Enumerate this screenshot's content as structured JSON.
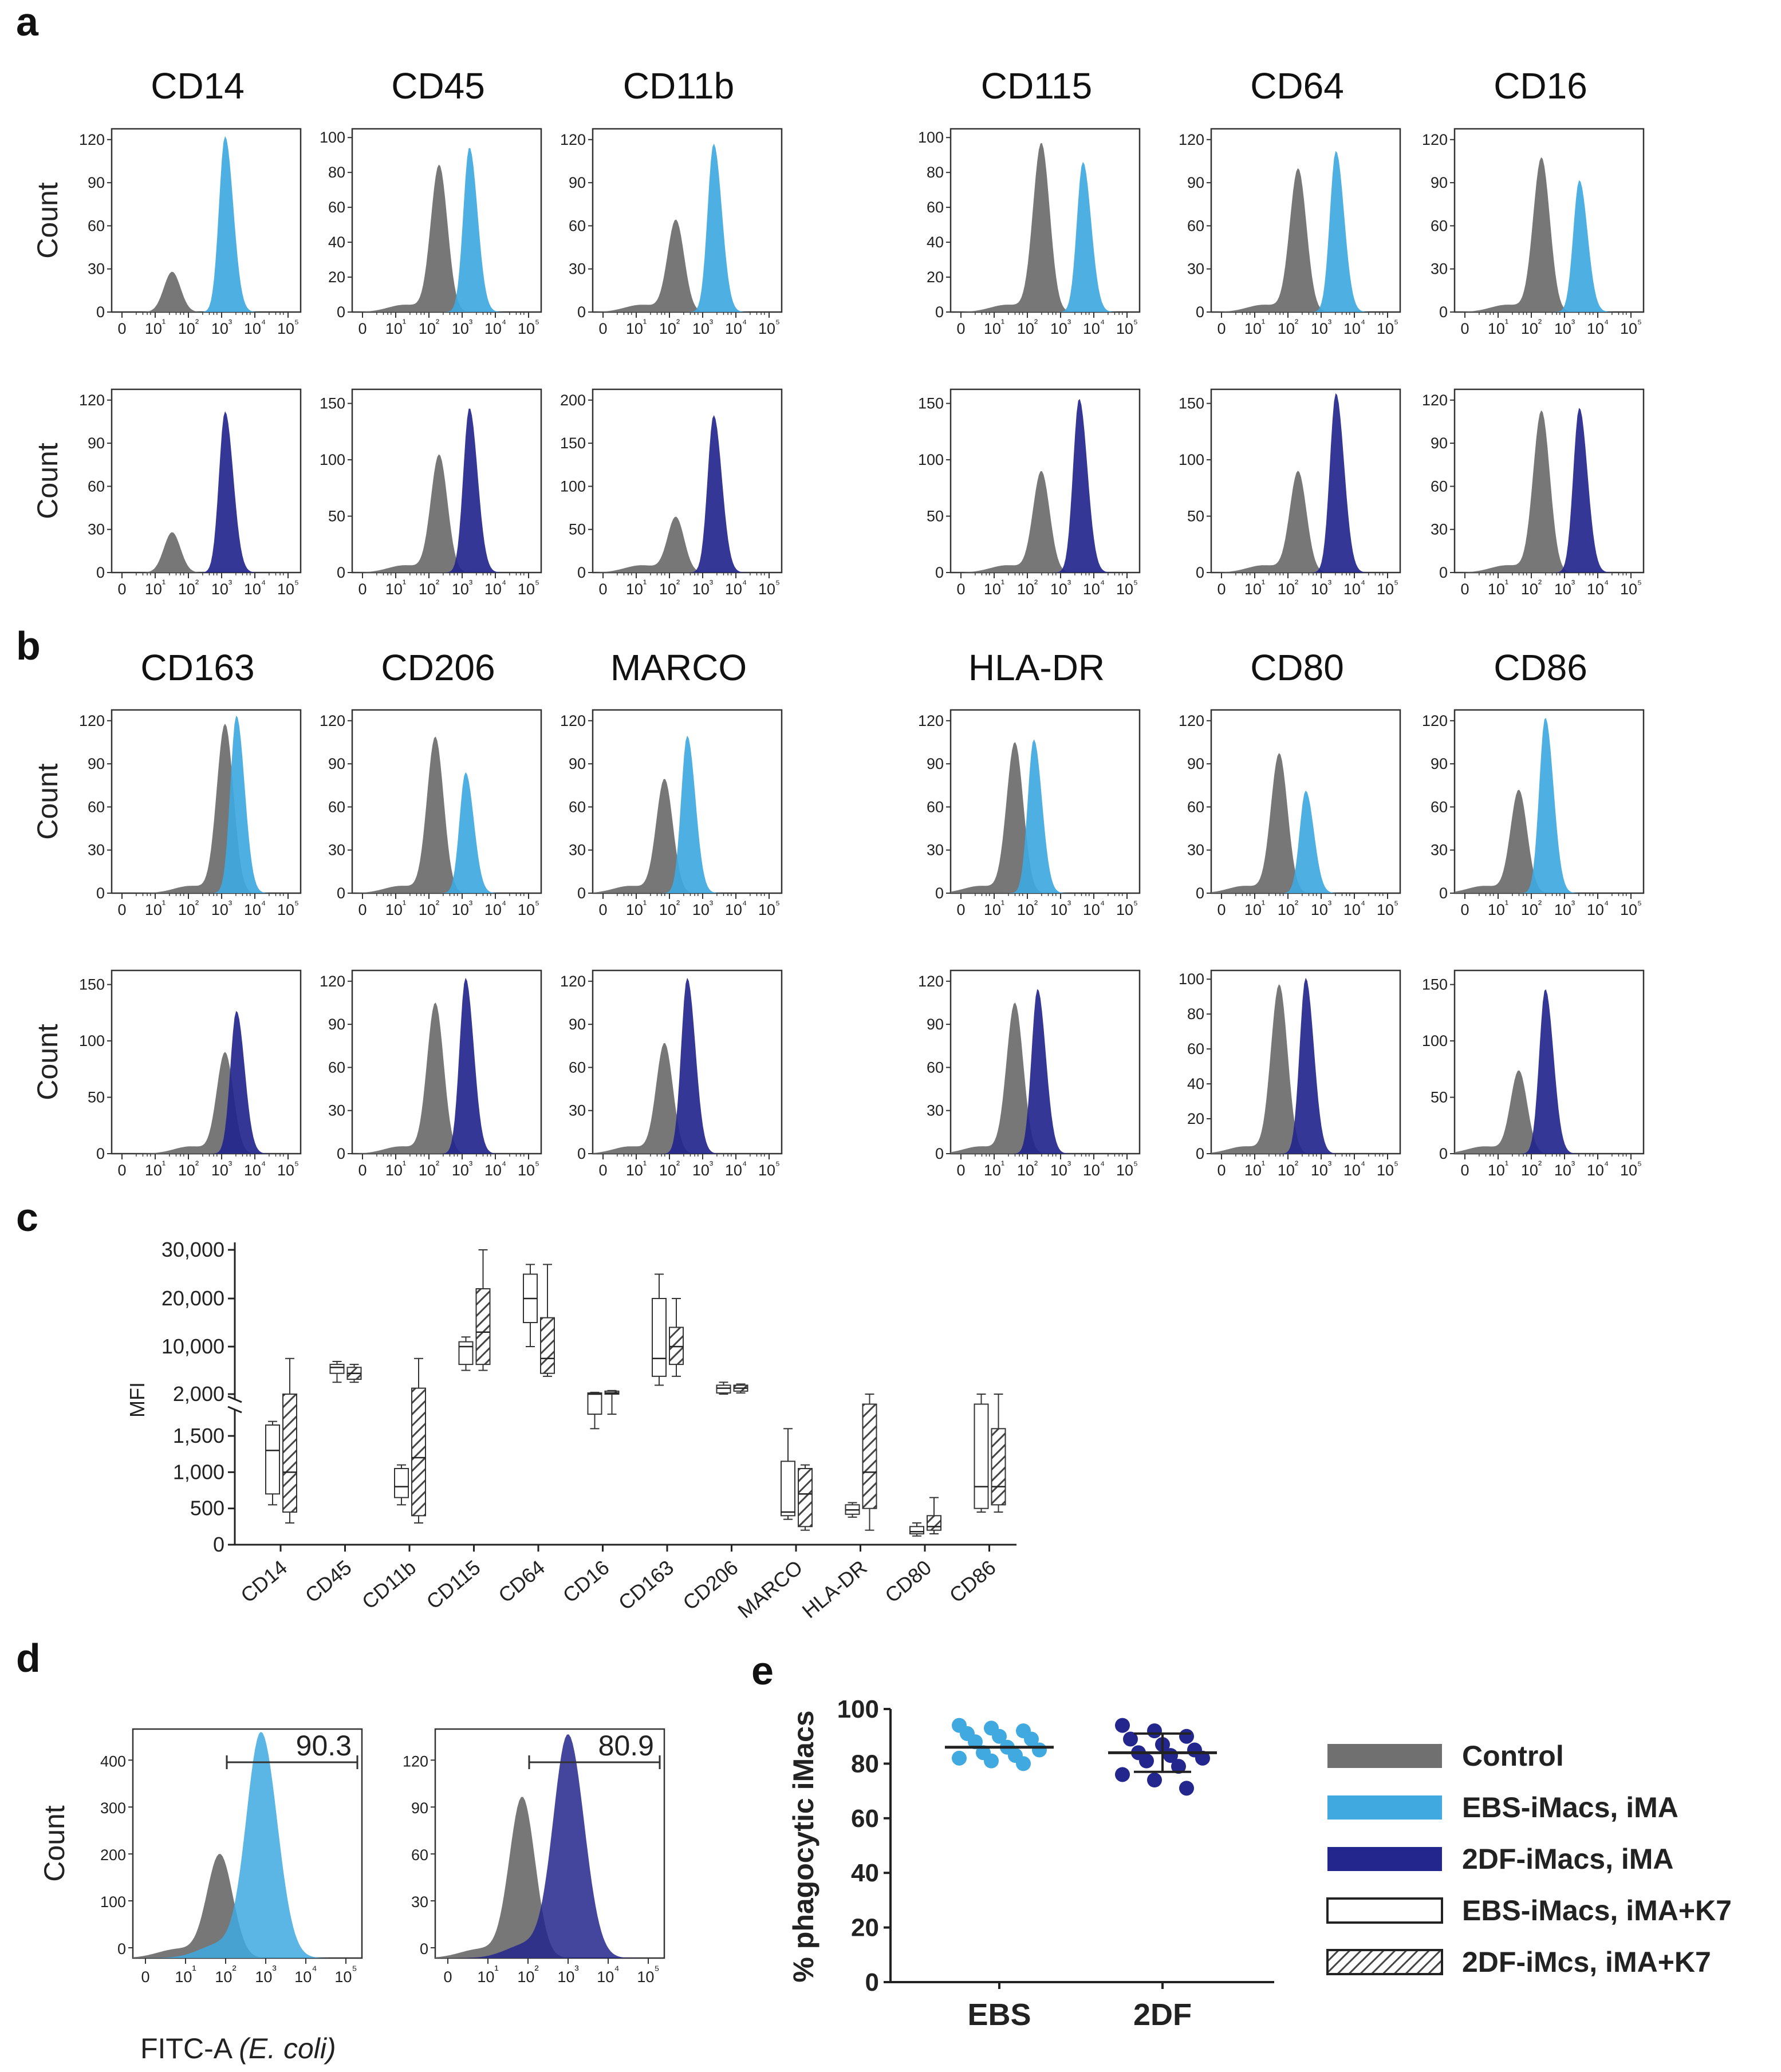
{
  "panel_labels": [
    "a",
    "b",
    "c",
    "d",
    "e"
  ],
  "colors": {
    "control": "#707070",
    "ebs": "#3fa9e0",
    "twodf": "#23268c",
    "box_outline": "#333333"
  },
  "hist_common": {
    "y_label": "Count",
    "x_ticks": [
      "0",
      "10¹",
      "10²",
      "10³",
      "10⁴",
      "10⁵"
    ]
  },
  "chart_data": [
    {
      "type": "histogram-grid",
      "panel": "a",
      "markers": [
        "CD14",
        "CD45",
        "CD11b",
        "CD115",
        "CD64",
        "CD16"
      ],
      "rows": [
        {
          "series": "EBS-iMacs, iMA",
          "ytick_sets": [
            [
              "0",
              "30",
              "60",
              "90",
              "120"
            ],
            [
              "0",
              "20",
              "40",
              "60",
              "80",
              "100"
            ],
            [
              "0",
              "30",
              "60",
              "90",
              "120"
            ],
            [
              "0",
              "20",
              "40",
              "60",
              "80",
              "100"
            ],
            [
              "0",
              "30",
              "60",
              "90",
              "120"
            ],
            [
              "0",
              "30",
              "60",
              "90",
              "120"
            ]
          ],
          "control_peaks": [
            [
              1.6,
              0.22
            ],
            [
              2.3,
              0.8
            ],
            [
              2.2,
              0.5
            ],
            [
              2.4,
              0.92
            ],
            [
              2.3,
              0.78
            ],
            [
              2.3,
              0.84
            ]
          ],
          "sample_peaks": [
            [
              3.0,
              0.96
            ],
            [
              3.1,
              0.9
            ],
            [
              3.2,
              0.92
            ],
            [
              3.5,
              0.82
            ],
            [
              3.3,
              0.88
            ],
            [
              3.3,
              0.72
            ]
          ]
        },
        {
          "series": "2DF-iMacs, iMA",
          "ytick_sets": [
            [
              "0",
              "30",
              "60",
              "90",
              "120"
            ],
            [
              "0",
              "50",
              "100",
              "150"
            ],
            [
              "0",
              "50",
              "100",
              "150",
              "200"
            ],
            [
              "0",
              "50",
              "100",
              "150"
            ],
            [
              "0",
              "50",
              "100",
              "150"
            ],
            [
              "0",
              "30",
              "60",
              "90",
              "120"
            ]
          ],
          "control_peaks": [
            [
              1.6,
              0.22
            ],
            [
              2.3,
              0.64
            ],
            [
              2.2,
              0.3
            ],
            [
              2.4,
              0.55
            ],
            [
              2.3,
              0.55
            ],
            [
              2.3,
              0.88
            ]
          ],
          "sample_peaks": [
            [
              3.0,
              0.88
            ],
            [
              3.1,
              0.9
            ],
            [
              3.2,
              0.86
            ],
            [
              3.4,
              0.95
            ],
            [
              3.3,
              0.98
            ],
            [
              3.3,
              0.9
            ]
          ]
        }
      ]
    },
    {
      "type": "histogram-grid",
      "panel": "b",
      "markers": [
        "CD163",
        "CD206",
        "MARCO",
        "HLA-DR",
        "CD80",
        "CD86"
      ],
      "rows": [
        {
          "series": "EBS-iMacs, iMA",
          "ytick_sets": [
            [
              "0",
              "30",
              "60",
              "90",
              "120"
            ],
            [
              "0",
              "30",
              "60",
              "90",
              "120"
            ],
            [
              "0",
              "30",
              "60",
              "90",
              "120"
            ],
            [
              "0",
              "30",
              "60",
              "90",
              "120"
            ],
            [
              "0",
              "30",
              "60",
              "90",
              "120"
            ],
            [
              "0",
              "30",
              "60",
              "90",
              "120"
            ]
          ],
          "control_peaks": [
            [
              3.0,
              0.92
            ],
            [
              2.2,
              0.85
            ],
            [
              1.9,
              0.62
            ],
            [
              1.7,
              0.82
            ],
            [
              1.8,
              0.76
            ],
            [
              1.7,
              0.56
            ]
          ],
          "sample_peaks": [
            [
              3.3,
              0.97
            ],
            [
              3.0,
              0.66
            ],
            [
              2.5,
              0.86
            ],
            [
              2.2,
              0.84
            ],
            [
              2.5,
              0.56
            ],
            [
              2.4,
              0.96
            ]
          ]
        },
        {
          "series": "2DF-iMacs, iMA",
          "ytick_sets": [
            [
              "0",
              "50",
              "100",
              "150"
            ],
            [
              "0",
              "30",
              "60",
              "90",
              "120"
            ],
            [
              "0",
              "30",
              "60",
              "90",
              "120"
            ],
            [
              "0",
              "30",
              "60",
              "90",
              "120"
            ],
            [
              "0",
              "20",
              "40",
              "60",
              "80",
              "100"
            ],
            [
              "0",
              "50",
              "100",
              "150"
            ]
          ],
          "control_peaks": [
            [
              3.0,
              0.55
            ],
            [
              2.2,
              0.82
            ],
            [
              1.9,
              0.6
            ],
            [
              1.7,
              0.82
            ],
            [
              1.8,
              0.92
            ],
            [
              1.7,
              0.45
            ]
          ],
          "sample_peaks": [
            [
              3.3,
              0.78
            ],
            [
              3.0,
              0.96
            ],
            [
              2.5,
              0.96
            ],
            [
              2.3,
              0.9
            ],
            [
              2.5,
              0.96
            ],
            [
              2.4,
              0.9
            ]
          ]
        }
      ]
    },
    {
      "type": "boxplot",
      "panel": "c",
      "ylabel": "MFI",
      "y_ticks_upper": [
        "2,000",
        "10,000",
        "20,000",
        "30,000"
      ],
      "y_ticks_lower": [
        "0",
        "500",
        "1,000",
        "1,500"
      ],
      "categories": [
        "CD14",
        "CD45",
        "CD11b",
        "CD115",
        "CD64",
        "CD16",
        "CD163",
        "CD206",
        "MARCO",
        "HLA-DR",
        "CD80",
        "CD86"
      ],
      "series": [
        {
          "name": "EBS-iMacs, iMA+K7",
          "fill": "open",
          "boxes": [
            [
              550,
              700,
              1300,
              1650,
              1700
            ],
            [
              4000,
              5500,
              6500,
              7000,
              7500
            ],
            [
              550,
              650,
              800,
              1050,
              1100
            ],
            [
              6000,
              7000,
              10000,
              11000,
              12000
            ],
            [
              10000,
              15000,
              20000,
              25000,
              27000
            ],
            [
              1600,
              1800,
              2000,
              2200,
              2300
            ],
            [
              3500,
              5000,
              8000,
              20000,
              25000
            ],
            [
              2000,
              2200,
              3000,
              3500,
              4000
            ],
            [
              350,
              400,
              450,
              1150,
              1600
            ],
            [
              380,
              420,
              480,
              550,
              580
            ],
            [
              120,
              150,
              180,
              250,
              300
            ],
            [
              450,
              500,
              800,
              1900,
              2000
            ]
          ]
        },
        {
          "name": "2DF-iMcs, iMA+K7",
          "fill": "hatched",
          "boxes": [
            [
              300,
              450,
              1000,
              2000,
              8000
            ],
            [
              4000,
              4500,
              5500,
              6500,
              7000
            ],
            [
              300,
              400,
              1200,
              3000,
              8000
            ],
            [
              6000,
              7000,
              13000,
              22000,
              30000
            ],
            [
              5000,
              5500,
              8000,
              16000,
              27000
            ],
            [
              1800,
              2000,
              2200,
              2500,
              2600
            ],
            [
              5000,
              7000,
              10000,
              14000,
              20000
            ],
            [
              2200,
              2500,
              3000,
              3500,
              3700
            ],
            [
              200,
              250,
              700,
              1050,
              1100
            ],
            [
              200,
              500,
              1000,
              1900,
              2000
            ],
            [
              150,
              200,
              250,
              400,
              650
            ],
            [
              450,
              550,
              800,
              1600,
              2000
            ]
          ]
        }
      ]
    },
    {
      "type": "histogram",
      "panel": "d",
      "xlabel_main": "FITC-A ",
      "xlabel_italic": "(E. coli)",
      "ylabel": "Count",
      "plots": [
        {
          "series": "EBS-iMacs, iMA",
          "y_ticks": [
            "0",
            "100",
            "200",
            "300",
            "400"
          ],
          "gate_value": "90.3",
          "control_peak": [
            1.9,
            0.45
          ],
          "sample_peak": [
            2.8,
            0.98
          ]
        },
        {
          "series": "2DF-iMacs, iMA",
          "y_ticks": [
            "0",
            "30",
            "60",
            "90",
            "120"
          ],
          "gate_value": "80.9",
          "control_peak": [
            1.9,
            0.7
          ],
          "sample_peak": [
            2.9,
            0.97
          ]
        }
      ]
    },
    {
      "type": "scatter",
      "panel": "e",
      "ylabel": "% phagocytic iMacs",
      "ylim": [
        0,
        100
      ],
      "y_ticks": [
        "0",
        "20",
        "40",
        "60",
        "80",
        "100"
      ],
      "categories": [
        "EBS",
        "2DF"
      ],
      "series": [
        {
          "name": "EBS",
          "mean": 86,
          "values": [
            94,
            93,
            92,
            91,
            90,
            89,
            88,
            86,
            85,
            84,
            83,
            82,
            81,
            80
          ]
        },
        {
          "name": "2DF",
          "mean": 84,
          "sd_low": 77,
          "sd_high": 91,
          "values": [
            94,
            92,
            90,
            89,
            87,
            85,
            84,
            83,
            82,
            81,
            79,
            76,
            74,
            71
          ]
        }
      ]
    }
  ],
  "legend": [
    {
      "label": "Control",
      "style": "control"
    },
    {
      "label": "EBS-iMacs, iMA",
      "style": "ebs"
    },
    {
      "label": "2DF-iMacs, iMA",
      "style": "twodf"
    },
    {
      "label": "EBS-iMacs, iMA+K7",
      "style": "open"
    },
    {
      "label": "2DF-iMcs, iMA+K7",
      "style": "hatched"
    }
  ]
}
